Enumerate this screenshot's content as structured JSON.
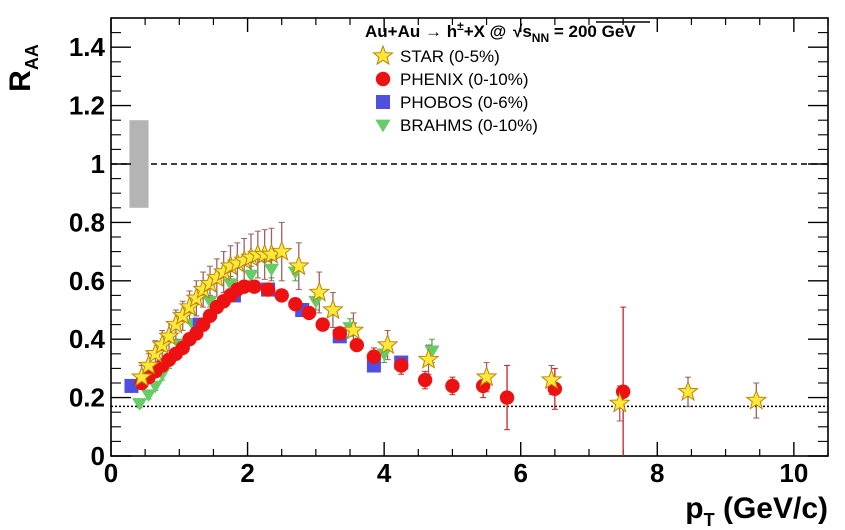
{
  "chart_data": {
    "type": "scatter",
    "title": {
      "prefix": "Au+Au → h",
      "sup": "±",
      "suffix": "+X  @ ",
      "sqrt_main": "s",
      "sqrt_sub": "NN",
      "energy": " = 200 GeV"
    },
    "xlabel": {
      "main": "p",
      "sub": "T",
      "rest": " (GeV/c)"
    },
    "ylabel": {
      "main": "R",
      "sub": "AA"
    },
    "xlim": [
      0,
      10.5
    ],
    "ylim": [
      0,
      1.5
    ],
    "x_ticks": [
      0,
      2,
      4,
      6,
      8,
      10
    ],
    "y_ticks": [
      0,
      0.2,
      0.4,
      0.6,
      0.8,
      1,
      1.2,
      1.4
    ],
    "x_tick_labels": [
      "0",
      "2",
      "4",
      "6",
      "8",
      "10"
    ],
    "y_tick_labels": [
      "0",
      "0.2",
      "0.4",
      "0.6",
      "0.8",
      "1",
      "1.2",
      "1.4"
    ],
    "reference_lines": [
      {
        "y": 1.0,
        "style": "dashed"
      },
      {
        "y": 0.17,
        "style": "dotted"
      }
    ],
    "systematic_box": {
      "x": [
        0.27,
        0.55
      ],
      "y": [
        0.85,
        1.15
      ],
      "color": "#b4b4b4"
    },
    "legend_position": "top-right",
    "series": [
      {
        "name": "STAR (0-5%)",
        "marker": "star",
        "color": "#ffe838",
        "edge": "#b8860b",
        "err_color": "#a06060",
        "points": [
          {
            "x": 0.45,
            "y": 0.27,
            "e": 0.04
          },
          {
            "x": 0.55,
            "y": 0.31,
            "e": 0.04
          },
          {
            "x": 0.65,
            "y": 0.35,
            "e": 0.045
          },
          {
            "x": 0.75,
            "y": 0.38,
            "e": 0.05
          },
          {
            "x": 0.85,
            "y": 0.41,
            "e": 0.05
          },
          {
            "x": 0.95,
            "y": 0.45,
            "e": 0.05
          },
          {
            "x": 1.05,
            "y": 0.48,
            "e": 0.05
          },
          {
            "x": 1.15,
            "y": 0.51,
            "e": 0.055
          },
          {
            "x": 1.25,
            "y": 0.54,
            "e": 0.06
          },
          {
            "x": 1.35,
            "y": 0.57,
            "e": 0.06
          },
          {
            "x": 1.45,
            "y": 0.59,
            "e": 0.06
          },
          {
            "x": 1.55,
            "y": 0.61,
            "e": 0.065
          },
          {
            "x": 1.65,
            "y": 0.63,
            "e": 0.07
          },
          {
            "x": 1.75,
            "y": 0.65,
            "e": 0.07
          },
          {
            "x": 1.85,
            "y": 0.66,
            "e": 0.07
          },
          {
            "x": 1.95,
            "y": 0.67,
            "e": 0.075
          },
          {
            "x": 2.05,
            "y": 0.68,
            "e": 0.08
          },
          {
            "x": 2.15,
            "y": 0.69,
            "e": 0.08
          },
          {
            "x": 2.25,
            "y": 0.69,
            "e": 0.085
          },
          {
            "x": 2.35,
            "y": 0.69,
            "e": 0.09
          },
          {
            "x": 2.5,
            "y": 0.7,
            "e": 0.1
          },
          {
            "x": 2.75,
            "y": 0.65,
            "e": 0.08
          },
          {
            "x": 3.05,
            "y": 0.56,
            "e": 0.07
          },
          {
            "x": 3.25,
            "y": 0.5,
            "e": 0.06
          },
          {
            "x": 3.55,
            "y": 0.43,
            "e": 0.06
          },
          {
            "x": 4.05,
            "y": 0.38,
            "e": 0.05
          },
          {
            "x": 4.65,
            "y": 0.33,
            "e": 0.05
          },
          {
            "x": 5.5,
            "y": 0.27,
            "e": 0.05
          },
          {
            "x": 6.45,
            "y": 0.26,
            "e": 0.05
          },
          {
            "x": 7.45,
            "y": 0.18,
            "e": 0.06
          },
          {
            "x": 8.45,
            "y": 0.22,
            "e": 0.05
          },
          {
            "x": 9.45,
            "y": 0.19,
            "e": 0.06
          }
        ]
      },
      {
        "name": "PHENIX (0-10%)",
        "marker": "circle",
        "color": "#ee1111",
        "edge": "#ee1111",
        "err_color": "#cc2222",
        "points": [
          {
            "x": 0.45,
            "y": 0.25,
            "e": 0.02
          },
          {
            "x": 0.55,
            "y": 0.27,
            "e": 0.02
          },
          {
            "x": 0.65,
            "y": 0.29,
            "e": 0.02
          },
          {
            "x": 0.75,
            "y": 0.31,
            "e": 0.02
          },
          {
            "x": 0.85,
            "y": 0.33,
            "e": 0.02
          },
          {
            "x": 0.95,
            "y": 0.35,
            "e": 0.02
          },
          {
            "x": 1.05,
            "y": 0.37,
            "e": 0.02
          },
          {
            "x": 1.15,
            "y": 0.4,
            "e": 0.02
          },
          {
            "x": 1.25,
            "y": 0.42,
            "e": 0.02
          },
          {
            "x": 1.35,
            "y": 0.45,
            "e": 0.02
          },
          {
            "x": 1.45,
            "y": 0.48,
            "e": 0.02
          },
          {
            "x": 1.55,
            "y": 0.51,
            "e": 0.02
          },
          {
            "x": 1.65,
            "y": 0.53,
            "e": 0.02
          },
          {
            "x": 1.75,
            "y": 0.55,
            "e": 0.02
          },
          {
            "x": 1.85,
            "y": 0.57,
            "e": 0.02
          },
          {
            "x": 1.95,
            "y": 0.58,
            "e": 0.02
          },
          {
            "x": 2.1,
            "y": 0.58,
            "e": 0.02
          },
          {
            "x": 2.3,
            "y": 0.57,
            "e": 0.02
          },
          {
            "x": 2.5,
            "y": 0.55,
            "e": 0.02
          },
          {
            "x": 2.7,
            "y": 0.52,
            "e": 0.02
          },
          {
            "x": 2.9,
            "y": 0.49,
            "e": 0.02
          },
          {
            "x": 3.1,
            "y": 0.45,
            "e": 0.02
          },
          {
            "x": 3.35,
            "y": 0.42,
            "e": 0.02
          },
          {
            "x": 3.6,
            "y": 0.38,
            "e": 0.02
          },
          {
            "x": 3.85,
            "y": 0.34,
            "e": 0.03
          },
          {
            "x": 4.25,
            "y": 0.31,
            "e": 0.03
          },
          {
            "x": 4.6,
            "y": 0.26,
            "e": 0.03
          },
          {
            "x": 5.0,
            "y": 0.24,
            "e": 0.03
          },
          {
            "x": 5.45,
            "y": 0.24,
            "e": 0.04
          },
          {
            "x": 5.8,
            "y": 0.2,
            "e": 0.11
          },
          {
            "x": 6.5,
            "y": 0.23,
            "e": 0.07
          },
          {
            "x": 7.5,
            "y": 0.22,
            "e": 0.29
          }
        ]
      },
      {
        "name": "PHOBOS (0-6%)",
        "marker": "square",
        "color": "#5050e0",
        "edge": "#4040c8",
        "err_color": "#5050e0",
        "points": [
          {
            "x": 0.3,
            "y": 0.24,
            "e": 0.015
          },
          {
            "x": 1.3,
            "y": 0.45,
            "e": 0.02
          },
          {
            "x": 1.8,
            "y": 0.55,
            "e": 0.02
          },
          {
            "x": 2.3,
            "y": 0.57,
            "e": 0.02
          },
          {
            "x": 2.8,
            "y": 0.5,
            "e": 0.02
          },
          {
            "x": 3.35,
            "y": 0.41,
            "e": 0.02
          },
          {
            "x": 3.85,
            "y": 0.31,
            "e": 0.02
          },
          {
            "x": 4.25,
            "y": 0.32,
            "e": 0.02
          }
        ]
      },
      {
        "name": "BRAHMS (0-10%)",
        "marker": "triangle-down",
        "color": "#66cc66",
        "edge": "#44aa44",
        "err_color": "#44aa44",
        "points": [
          {
            "x": 0.42,
            "y": 0.18,
            "e": 0.015
          },
          {
            "x": 0.55,
            "y": 0.21,
            "e": 0.015
          },
          {
            "x": 0.65,
            "y": 0.24,
            "e": 0.015
          },
          {
            "x": 0.75,
            "y": 0.28,
            "e": 0.02
          },
          {
            "x": 0.85,
            "y": 0.32,
            "e": 0.02
          },
          {
            "x": 1.0,
            "y": 0.38,
            "e": 0.02
          },
          {
            "x": 1.2,
            "y": 0.45,
            "e": 0.02
          },
          {
            "x": 1.45,
            "y": 0.53,
            "e": 0.02
          },
          {
            "x": 1.75,
            "y": 0.59,
            "e": 0.025
          },
          {
            "x": 2.05,
            "y": 0.62,
            "e": 0.03
          },
          {
            "x": 2.35,
            "y": 0.64,
            "e": 0.03
          },
          {
            "x": 2.7,
            "y": 0.63,
            "e": 0.03
          },
          {
            "x": 3.0,
            "y": 0.53,
            "e": 0.03
          },
          {
            "x": 3.5,
            "y": 0.44,
            "e": 0.03
          },
          {
            "x": 4.0,
            "y": 0.35,
            "e": 0.03
          },
          {
            "x": 4.7,
            "y": 0.36,
            "e": 0.04
          }
        ]
      }
    ]
  }
}
